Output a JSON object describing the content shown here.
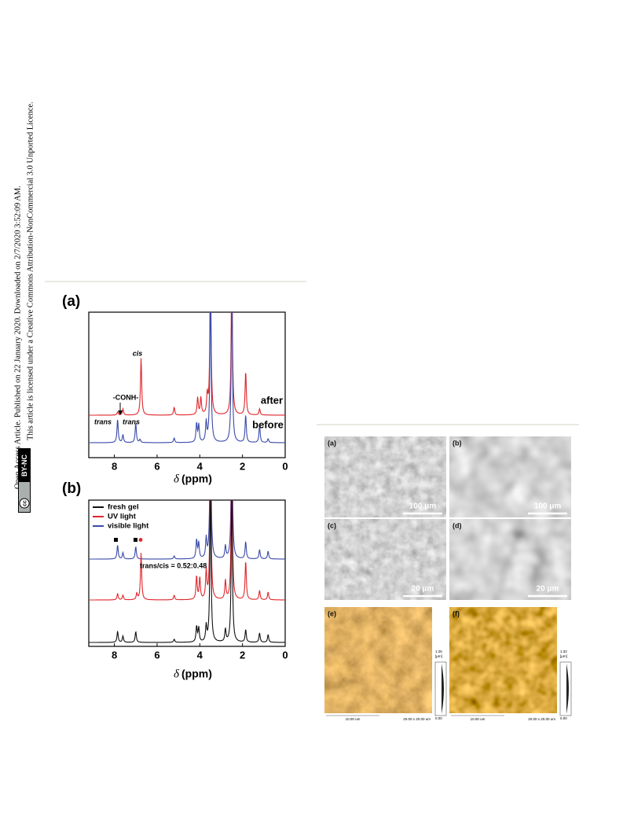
{
  "sidebar": {
    "line1": "Open Access Article. Published on 22 January 2020. Downloaded on 2/7/2020 3:52:09 AM.",
    "line2": "This article is licensed under a Creative Commons Attribution-NonCommercial 3.0 Unported Licence.",
    "badge": "BY-NC"
  },
  "figure_a": {
    "label": "(a)",
    "annotations": {
      "cis": "cis",
      "conh": "-CONH-",
      "trans1": "trans",
      "trans2": "trans",
      "after": "after",
      "before": "before"
    },
    "xlim": [
      9.2,
      0
    ],
    "xticks": [
      8,
      6,
      4,
      2,
      0
    ],
    "xlabel_symbol": "δ",
    "xlabel": "(ppm)"
  },
  "figure_b": {
    "label": "(b)",
    "legend": [
      {
        "name": "fresh gel",
        "color": "#111111"
      },
      {
        "name": "UV light",
        "color": "#e0262b"
      },
      {
        "name": "visible light",
        "color": "#3a4aa8"
      }
    ],
    "ratio": "trans/cis = 0.52:0.48",
    "xlim": [
      9.2,
      0
    ],
    "xticks": [
      8,
      6,
      4,
      2,
      0
    ],
    "xlabel_symbol": "δ",
    "xlabel": "(ppm)"
  },
  "micrographs": {
    "sem": [
      {
        "label": "(a)",
        "scale_bar": "100 μm"
      },
      {
        "label": "(b)",
        "scale_bar": "100 μm"
      },
      {
        "label": "(c)",
        "scale_bar": "20 μm"
      },
      {
        "label": "(d)",
        "scale_bar": "20 μm"
      }
    ],
    "afm": [
      {
        "label": "(e)",
        "zmax": "1.25",
        "zunit": "[μm]",
        "zmin": "0.00",
        "scale_bar": "10.00 um",
        "size": "20.00 x 20.00 um"
      },
      {
        "label": "(f)",
        "zmax": "1.32",
        "zunit": "[μm]",
        "zmin": "0.00",
        "scale_bar": "10.00 um",
        "size": "20.00 x 20.00 um"
      }
    ]
  }
}
